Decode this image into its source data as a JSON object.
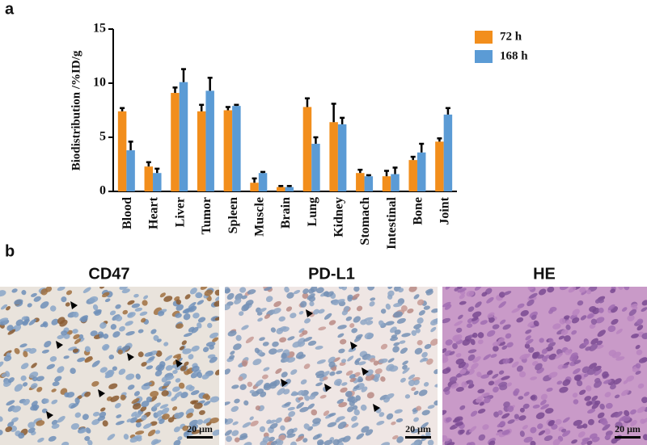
{
  "panel_labels": [
    "a",
    "b"
  ],
  "chart_data": {
    "type": "bar",
    "y_label": "Biodistribution /%ID/g",
    "categories": [
      "Blood",
      "Heart",
      "Liver",
      "Tumor",
      "Spleen",
      "Muscle",
      "Brain",
      "Lung",
      "Kidney",
      "Stomach",
      "Intestinal",
      "Bone",
      "Joint"
    ],
    "series": [
      {
        "name": "72 h",
        "color": "#f28e1c",
        "values": [
          7.4,
          2.3,
          9.1,
          7.4,
          7.5,
          0.8,
          0.4,
          7.8,
          6.4,
          1.7,
          1.4,
          2.9,
          4.6
        ],
        "errors": [
          0.3,
          0.4,
          0.5,
          0.6,
          0.3,
          0.4,
          0.1,
          0.8,
          1.7,
          0.3,
          0.5,
          0.3,
          0.3
        ]
      },
      {
        "name": "168 h",
        "color": "#5b9bd5",
        "values": [
          3.8,
          1.7,
          10.1,
          9.3,
          7.9,
          1.7,
          0.4,
          4.4,
          6.2,
          1.4,
          1.6,
          3.6,
          7.1
        ],
        "errors": [
          0.8,
          0.4,
          1.2,
          1.2,
          0.1,
          0.1,
          0.1,
          0.6,
          0.6,
          0.1,
          0.6,
          0.8,
          0.6
        ]
      }
    ],
    "ylim": [
      0,
      15
    ],
    "yticks": [
      0,
      5,
      10,
      15
    ]
  },
  "images": [
    {
      "title": "CD47",
      "scale_bar": "20 μm"
    },
    {
      "title": "PD-L1",
      "scale_bar": "20 μm"
    },
    {
      "title": "HE",
      "scale_bar": "20 μm"
    }
  ]
}
